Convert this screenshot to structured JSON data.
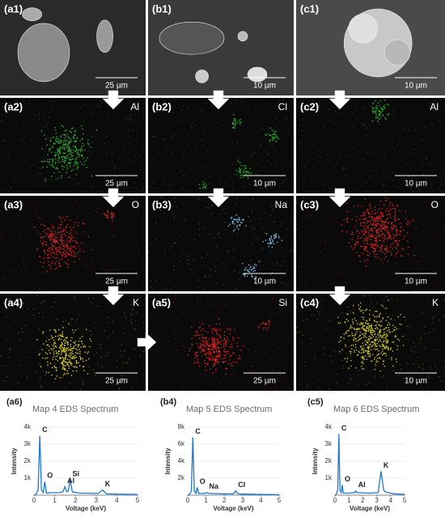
{
  "panels": [
    {
      "label": "(a1)",
      "scale": "25 µm"
    },
    {
      "label": "(b1)",
      "scale": "10 µm"
    },
    {
      "label": "(c1)",
      "scale": "10 µm"
    },
    {
      "label": "(a2)",
      "element": "Al",
      "scale": "25 µm",
      "color": "#2fae2f"
    },
    {
      "label": "(b2)",
      "element": "Cl",
      "scale": "10 µm",
      "color": "#2fae2f"
    },
    {
      "label": "(c2)",
      "element": "Al",
      "scale": "10 µm",
      "color": "#2fae2f"
    },
    {
      "label": "(a3)",
      "element": "O",
      "scale": "25 µm",
      "color": "#d02424"
    },
    {
      "label": "(b3)",
      "element": "Na",
      "scale": "10 µm",
      "color": "#78bde0"
    },
    {
      "label": "(c3)",
      "element": "O",
      "scale": "10 µm",
      "color": "#d02424"
    },
    {
      "label": "(a4)",
      "element": "K",
      "scale": "25 µm",
      "color": "#d6cc30"
    },
    {
      "label": "(a5)",
      "element": "Si",
      "scale": "25 µm",
      "color": "#e02020"
    },
    {
      "label": "(c4)",
      "element": "K",
      "scale": "10 µm",
      "color": "#c8c032"
    }
  ],
  "spectra": [
    {
      "type": "line",
      "label": "(a6)",
      "title": "Map 4 EDS Spectrum",
      "ylabel": "Intensity",
      "xlabel": "Voltage (keV)",
      "color": "#1f78d0",
      "xlim": [
        0,
        5
      ],
      "xticks": [
        0,
        1,
        2,
        3,
        4,
        5
      ],
      "ylim": [
        0,
        4000
      ],
      "yticks": [
        {
          "value": 1000,
          "label": "1k"
        },
        {
          "value": 2000,
          "label": "2k"
        },
        {
          "value": 3000,
          "label": "3k"
        },
        {
          "value": 4000,
          "label": "4k"
        }
      ],
      "x": [
        0,
        0.1,
        0.2,
        0.28,
        0.36,
        0.45,
        0.52,
        0.6,
        0.8,
        1.2,
        1.4,
        1.49,
        1.58,
        1.66,
        1.74,
        1.85,
        2.2,
        3.1,
        3.31,
        3.5,
        4.2,
        5
      ],
      "values": [
        0,
        60,
        300,
        3500,
        300,
        150,
        800,
        120,
        150,
        150,
        200,
        500,
        200,
        250,
        900,
        200,
        120,
        100,
        300,
        80,
        60,
        40
      ],
      "peaks": [
        {
          "label": "C",
          "x": 0.28
        },
        {
          "label": "O",
          "x": 0.52
        },
        {
          "label": "Al",
          "x": 1.49
        },
        {
          "label": "Si",
          "x": 1.74
        },
        {
          "label": "K",
          "x": 3.31
        }
      ]
    },
    {
      "type": "line",
      "label": "(b4)",
      "title": "Map 5 EDS Spectrum",
      "ylabel": "Intensity",
      "xlabel": "Voltage (keV)",
      "color": "#1f78d0",
      "xlim": [
        0,
        5
      ],
      "xticks": [
        0,
        1,
        2,
        3,
        4,
        5
      ],
      "ylim": [
        0,
        8000
      ],
      "yticks": [
        {
          "value": 2000,
          "label": "2k"
        },
        {
          "value": 4000,
          "label": "4k"
        },
        {
          "value": 6000,
          "label": "6k"
        },
        {
          "value": 8000,
          "label": "8k"
        }
      ],
      "x": [
        0,
        0.1,
        0.2,
        0.28,
        0.36,
        0.45,
        0.52,
        0.6,
        0.9,
        1.04,
        1.15,
        2.0,
        2.5,
        2.62,
        2.75,
        3.5,
        5
      ],
      "values": [
        0,
        100,
        500,
        6800,
        500,
        200,
        900,
        200,
        200,
        300,
        200,
        150,
        150,
        500,
        150,
        100,
        60
      ],
      "peaks": [
        {
          "label": "C",
          "x": 0.28
        },
        {
          "label": "O",
          "x": 0.52
        },
        {
          "label": "Na",
          "x": 1.04
        },
        {
          "label": "Cl",
          "x": 2.62
        }
      ]
    },
    {
      "type": "line",
      "label": "(c5)",
      "title": "Map 6 EDS Spectrum",
      "ylabel": "Intensity",
      "xlabel": "Voltage (keV)",
      "color": "#1f78d0",
      "xlim": [
        0,
        5
      ],
      "xticks": [
        0,
        1,
        2,
        3,
        4,
        5
      ],
      "ylim": [
        0,
        4000
      ],
      "yticks": [
        {
          "value": 1000,
          "label": "1k"
        },
        {
          "value": 2000,
          "label": "2k"
        },
        {
          "value": 3000,
          "label": "3k"
        },
        {
          "value": 4000,
          "label": "4k"
        }
      ],
      "x": [
        0,
        0.1,
        0.2,
        0.28,
        0.36,
        0.45,
        0.52,
        0.6,
        1.0,
        1.4,
        1.49,
        1.58,
        2.5,
        3.1,
        3.31,
        3.5,
        3.6,
        4.2,
        5
      ],
      "values": [
        0,
        60,
        300,
        3600,
        300,
        150,
        600,
        120,
        120,
        150,
        250,
        150,
        120,
        150,
        1400,
        300,
        200,
        80,
        50
      ],
      "peaks": [
        {
          "label": "C",
          "x": 0.28
        },
        {
          "label": "O",
          "x": 0.52
        },
        {
          "label": "Al",
          "x": 1.49
        },
        {
          "label": "K",
          "x": 3.31
        }
      ]
    }
  ]
}
